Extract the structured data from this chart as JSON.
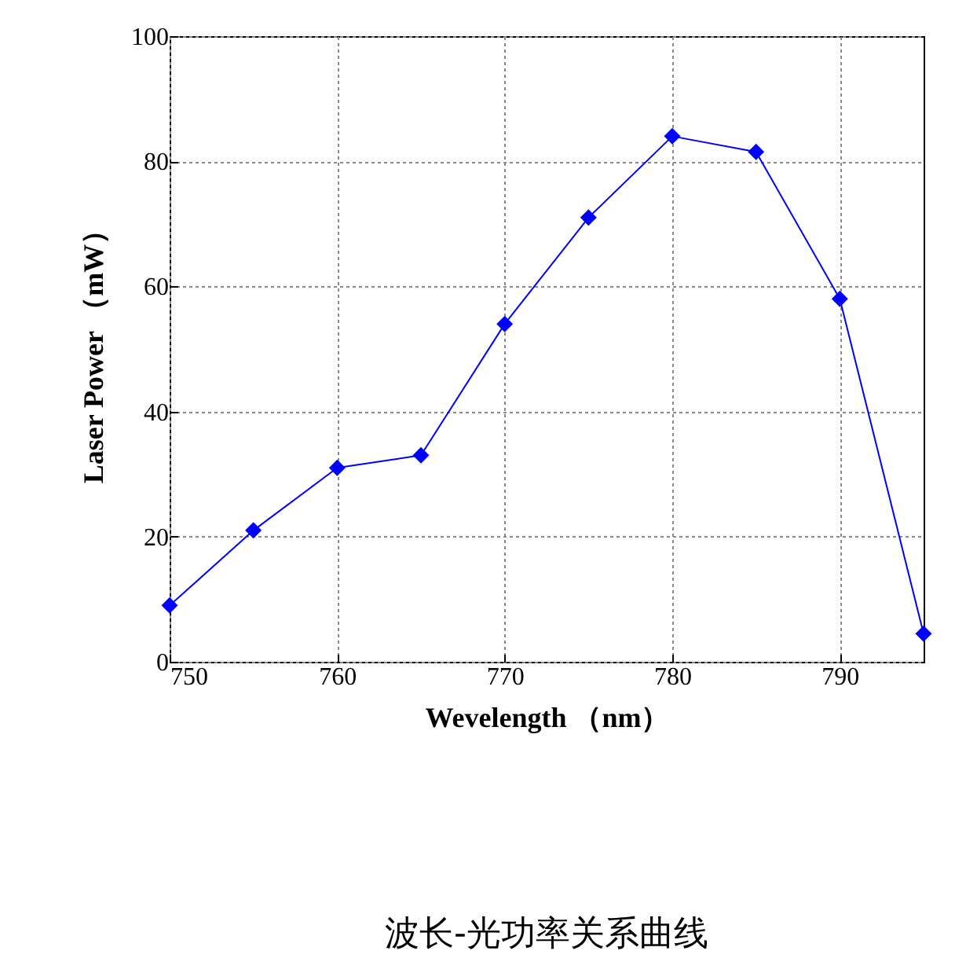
{
  "chart_data": {
    "type": "line",
    "title": "波长-光功率关系曲线",
    "xlabel": "Wevelength （nm）",
    "ylabel": "Laser Power （mW）",
    "x": [
      750,
      755,
      760,
      765,
      770,
      775,
      780,
      785,
      790,
      795
    ],
    "series": [
      {
        "color": "#0000ff",
        "values": [
          9,
          21,
          31,
          33,
          54,
          71,
          84,
          81.5,
          58,
          4.5
        ]
      }
    ],
    "xlim": [
      750,
      795
    ],
    "xticks": [
      750,
      760,
      770,
      780,
      790
    ],
    "ylim": [
      0,
      100
    ],
    "yticks": [
      0,
      20,
      40,
      60,
      80,
      100
    ],
    "grid": true,
    "marker": "diamond",
    "line_style": "solid",
    "legend": false
  }
}
